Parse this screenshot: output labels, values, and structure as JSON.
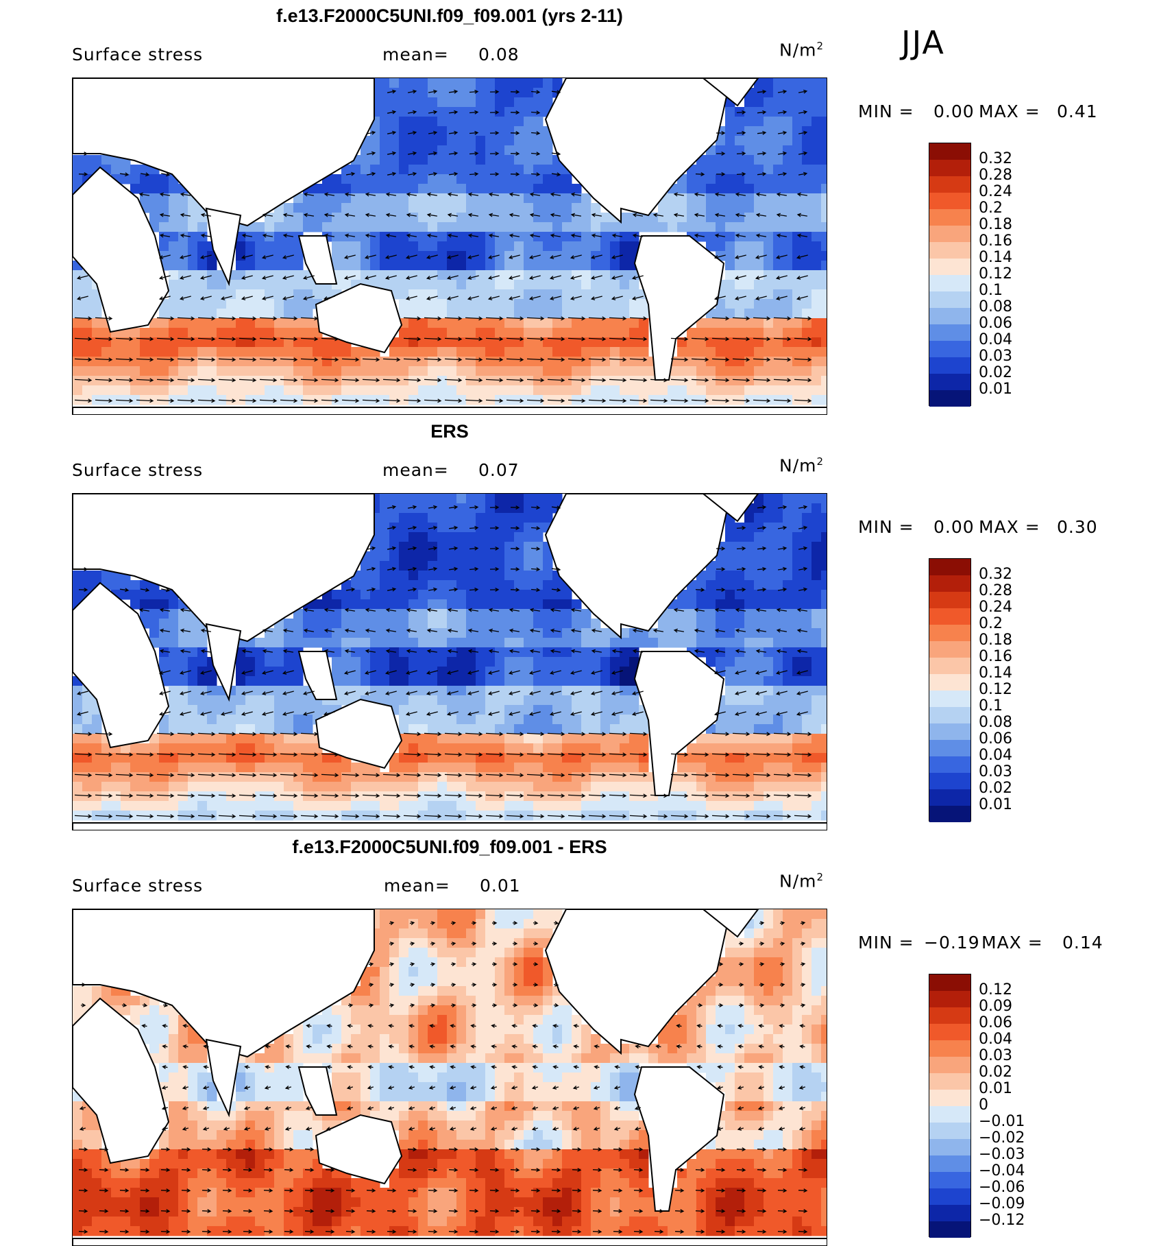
{
  "season": "JJA",
  "panels": [
    {
      "title": "f.e13.F2000C5UNI.f09_f09.001 (yrs 2-11)",
      "variable": "Surface stress",
      "mean_label": "mean=",
      "mean_value": "0.08",
      "units": "N/m",
      "units_exp": "2",
      "min_label": "MIN =",
      "min_value": "0.00",
      "max_label": "MAX =",
      "max_value": "0.41",
      "colorbar": {
        "labels": [
          "0.32",
          "0.28",
          "0.24",
          "0.2",
          "0.18",
          "0.16",
          "0.14",
          "0.12",
          "0.1",
          "0.08",
          "0.06",
          "0.04",
          "0.03",
          "0.02",
          "0.01"
        ],
        "colors": [
          "#8b0e04",
          "#b31f0a",
          "#d63a14",
          "#f0592a",
          "#f7824d",
          "#f9a57c",
          "#fbc6a8",
          "#fde4d3",
          "#d6e8f8",
          "#b5d2f2",
          "#8fb5ec",
          "#5f8ee6",
          "#3866e0",
          "#1d44cf",
          "#0d26a8",
          "#061478"
        ]
      }
    },
    {
      "title": "ERS",
      "variable": "Surface stress",
      "mean_label": "mean=",
      "mean_value": "0.07",
      "units": "N/m",
      "units_exp": "2",
      "min_label": "MIN =",
      "min_value": "0.00",
      "max_label": "MAX =",
      "max_value": "0.30",
      "colorbar": {
        "labels": [
          "0.32",
          "0.28",
          "0.24",
          "0.2",
          "0.18",
          "0.16",
          "0.14",
          "0.12",
          "0.1",
          "0.08",
          "0.06",
          "0.04",
          "0.03",
          "0.02",
          "0.01"
        ],
        "colors": [
          "#8b0e04",
          "#b31f0a",
          "#d63a14",
          "#f0592a",
          "#f7824d",
          "#f9a57c",
          "#fbc6a8",
          "#fde4d3",
          "#d6e8f8",
          "#b5d2f2",
          "#8fb5ec",
          "#5f8ee6",
          "#3866e0",
          "#1d44cf",
          "#0d26a8",
          "#061478"
        ]
      }
    },
    {
      "title": "f.e13.F2000C5UNI.f09_f09.001 - ERS",
      "variable": "Surface stress",
      "mean_label": "mean=",
      "mean_value": "0.01",
      "units": "N/m",
      "units_exp": "2",
      "min_label": "MIN =",
      "min_value": "−0.19",
      "max_label": "MAX =",
      "max_value": "0.14",
      "colorbar": {
        "labels": [
          "0.12",
          "0.09",
          "0.06",
          "0.04",
          "0.03",
          "0.02",
          "0.01",
          "0",
          "−0.01",
          "−0.02",
          "−0.03",
          "−0.04",
          "−0.06",
          "−0.09",
          "−0.12"
        ],
        "colors": [
          "#8b0e04",
          "#b31f0a",
          "#d63a14",
          "#f0592a",
          "#f7824d",
          "#f9a57c",
          "#fbc6a8",
          "#fde4d3",
          "#d6e8f8",
          "#b5d2f2",
          "#8fb5ec",
          "#5f8ee6",
          "#3866e0",
          "#1d44cf",
          "#0d26a8",
          "#061478"
        ]
      }
    }
  ]
}
